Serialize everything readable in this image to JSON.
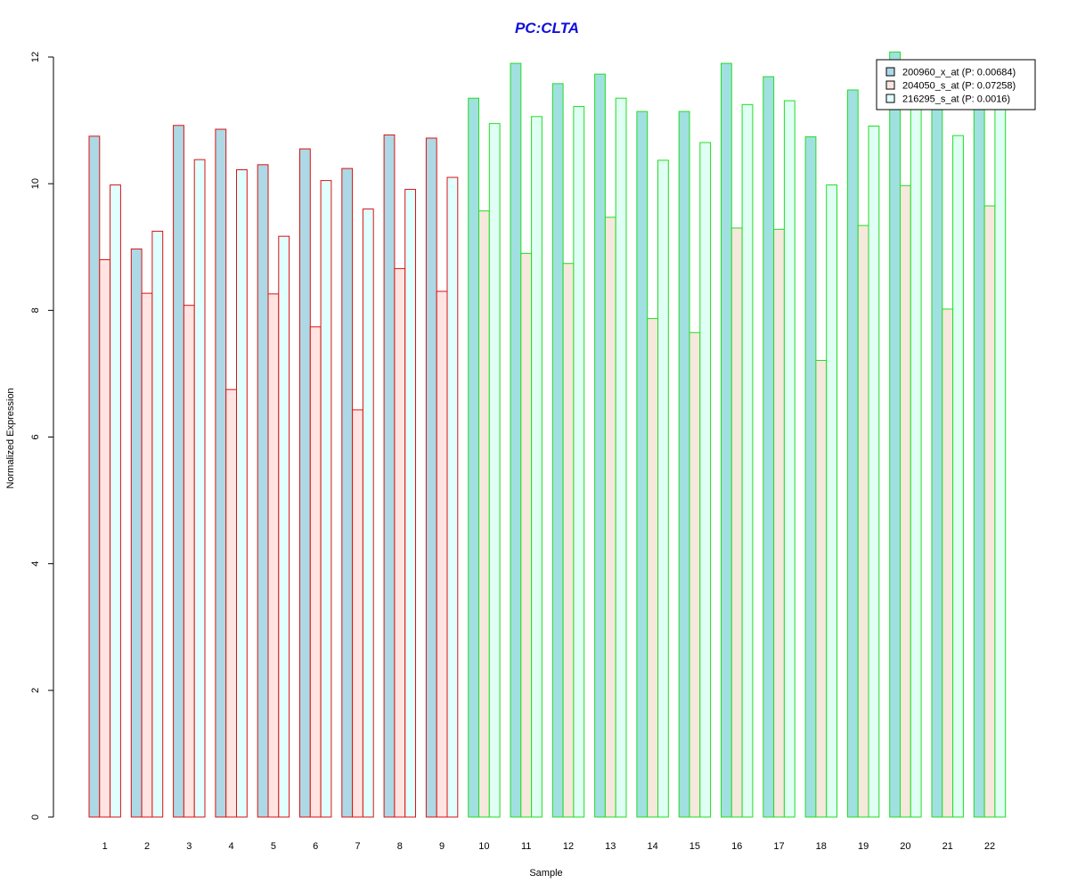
{
  "chart_data": {
    "type": "bar",
    "title": "PC:CLTA",
    "xlabel": "Sample",
    "ylabel": "Normalized Expression",
    "ylim": [
      0,
      12
    ],
    "yticks": [
      "0",
      "2",
      "4",
      "6",
      "8",
      "10",
      "12"
    ],
    "categories": [
      "1",
      "2",
      "3",
      "4",
      "5",
      "6",
      "7",
      "8",
      "9",
      "10",
      "11",
      "12",
      "13",
      "14",
      "15",
      "16",
      "17",
      "18",
      "19",
      "20",
      "21",
      "22"
    ],
    "series": [
      {
        "name": "200960_x_at (P: 0.00684)",
        "values": [
          10.75,
          8.97,
          10.92,
          10.86,
          10.3,
          10.55,
          10.24,
          10.77,
          10.72,
          11.35,
          11.9,
          11.58,
          11.73,
          11.14,
          11.14,
          11.9,
          11.69,
          10.74,
          11.48,
          12.08,
          11.2,
          11.6
        ]
      },
      {
        "name": "204050_s_at (P: 0.07258)",
        "values": [
          8.8,
          8.27,
          8.08,
          6.75,
          8.26,
          7.74,
          6.43,
          8.66,
          8.3,
          9.57,
          8.9,
          8.74,
          9.47,
          7.87,
          7.65,
          9.3,
          9.28,
          7.21,
          9.34,
          9.97,
          8.02,
          9.65
        ]
      },
      {
        "name": "216295_s_at (P: 0.0016)",
        "values": [
          9.98,
          9.25,
          10.38,
          10.22,
          9.17,
          10.05,
          9.6,
          9.91,
          10.1,
          10.95,
          11.06,
          11.22,
          11.35,
          10.37,
          10.65,
          11.25,
          11.31,
          9.98,
          10.91,
          11.4,
          10.76,
          11.4
        ]
      }
    ],
    "groups": [
      {
        "samples": [
          "1",
          "2",
          "3",
          "4",
          "5",
          "6",
          "7",
          "8",
          "9"
        ],
        "border_color": "#dd1111"
      },
      {
        "samples": [
          "10",
          "11",
          "12",
          "13",
          "14",
          "15",
          "16",
          "17",
          "18",
          "19",
          "20",
          "21",
          "22"
        ],
        "border_color": "#22dd22"
      }
    ],
    "bar_fills": {
      "group1": [
        "#add8e6",
        "#ffe4e1",
        "#e0ffff"
      ],
      "group2": [
        "#a0e0e0",
        "#f6e8dc",
        "#e0fff4"
      ]
    },
    "legend": {
      "placement": "top-right",
      "swatch_fills": [
        "#add8e6",
        "#ffe4e1",
        "#e0ffff"
      ]
    },
    "grid": false
  }
}
